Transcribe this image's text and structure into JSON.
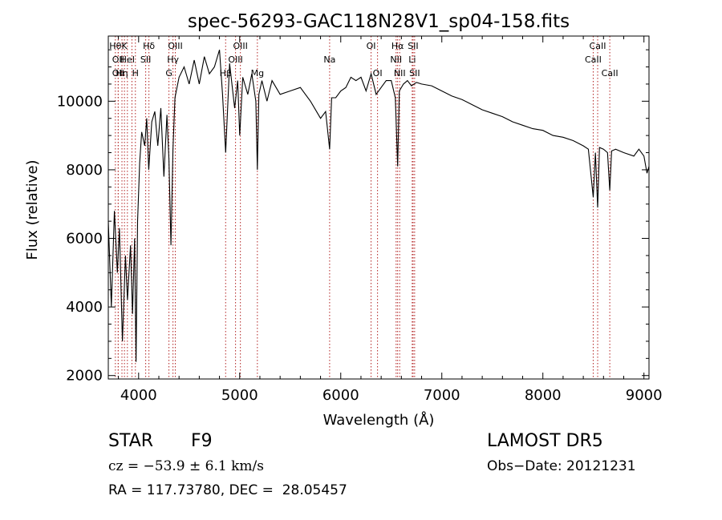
{
  "chart_data": {
    "type": "line",
    "title": "spec-56293-GAC118N28V1_sp04-158.fits",
    "xlabel": "Wavelength (Å)",
    "ylabel": "Flux (relative)",
    "xlim": [
      3700,
      9050
    ],
    "ylim": [
      1900,
      11900
    ],
    "xticks": [
      4000,
      5000,
      6000,
      7000,
      8000,
      9000
    ],
    "yticks": [
      2000,
      4000,
      6000,
      8000,
      10000
    ],
    "grid": false,
    "series": [
      {
        "x": [
          3700,
          3730,
          3760,
          3790,
          3810,
          3840,
          3870,
          3890,
          3920,
          3940,
          3960,
          3975,
          3990,
          4010,
          4030,
          4060,
          4080,
          4100,
          4130,
          4160,
          4190,
          4220,
          4250,
          4280,
          4300,
          4320,
          4340,
          4360,
          4400,
          4450,
          4500,
          4550,
          4600,
          4650,
          4700,
          4750,
          4800,
          4830,
          4861,
          4900,
          4950,
          4980,
          5000,
          5030,
          5080,
          5120,
          5160,
          5175,
          5190,
          5220,
          5270,
          5320,
          5400,
          5500,
          5600,
          5700,
          5800,
          5850,
          5890,
          5910,
          5950,
          6000,
          6050,
          6100,
          6150,
          6200,
          6250,
          6300,
          6350,
          6400,
          6450,
          6500,
          6540,
          6563,
          6580,
          6620,
          6660,
          6700,
          6750,
          6800,
          6900,
          7000,
          7100,
          7200,
          7300,
          7400,
          7500,
          7600,
          7700,
          7800,
          7900,
          8000,
          8100,
          8200,
          8300,
          8400,
          8450,
          8498,
          8520,
          8542,
          8560,
          8600,
          8640,
          8662,
          8680,
          8720,
          8800,
          8900,
          8950,
          9000,
          9030,
          9050
        ],
        "y": [
          6500,
          4000,
          6800,
          5000,
          6300,
          3000,
          5500,
          4200,
          5800,
          3800,
          6000,
          2400,
          6500,
          8200,
          9100,
          8700,
          9500,
          8000,
          9400,
          9700,
          8700,
          9800,
          7800,
          9600,
          8300,
          5800,
          8600,
          10100,
          10700,
          11000,
          10500,
          11200,
          10500,
          11300,
          10800,
          11000,
          11500,
          10200,
          8500,
          11100,
          9800,
          10600,
          9000,
          10700,
          10200,
          10800,
          10000,
          8000,
          10200,
          10600,
          10000,
          10600,
          10200,
          10300,
          10400,
          10000,
          9500,
          9700,
          8600,
          10100,
          10100,
          10300,
          10400,
          10700,
          10600,
          10700,
          10300,
          10800,
          10200,
          10400,
          10600,
          10600,
          10100,
          8100,
          10300,
          10500,
          10600,
          10450,
          10550,
          10500,
          10450,
          10300,
          10150,
          10050,
          9900,
          9750,
          9650,
          9550,
          9400,
          9300,
          9200,
          9150,
          9000,
          8950,
          8850,
          8700,
          8600,
          7200,
          8500,
          6900,
          8650,
          8600,
          8500,
          7400,
          8550,
          8600,
          8500,
          8400,
          8600,
          8400,
          7900,
          8100
        ]
      }
    ],
    "lines": [
      {
        "x": 3770,
        "label": "Hθ",
        "row": 0
      },
      {
        "x": 3798,
        "label": "OII",
        "row": 1
      },
      {
        "x": 3798,
        "label": "OII",
        "row": 2
      },
      {
        "x": 3835,
        "label": "Hη",
        "row": 2
      },
      {
        "x": 3860,
        "label": "K",
        "row": 0
      },
      {
        "x": 3889,
        "label": "HeI",
        "row": 1
      },
      {
        "x": 3934,
        "label": "",
        "row": 0
      },
      {
        "x": 3968,
        "label": "H",
        "row": 2
      },
      {
        "x": 4070,
        "label": "SII",
        "row": 1
      },
      {
        "x": 4102,
        "label": "Hδ",
        "row": 0
      },
      {
        "x": 4300,
        "label": "G",
        "row": 2
      },
      {
        "x": 4340,
        "label": "Hγ",
        "row": 1
      },
      {
        "x": 4363,
        "label": "OIII",
        "row": 0
      },
      {
        "x": 4861,
        "label": "Hβ",
        "row": 2
      },
      {
        "x": 4959,
        "label": "OIII",
        "row": 1
      },
      {
        "x": 5007,
        "label": "OIII",
        "row": 0
      },
      {
        "x": 5175,
        "label": "Mg",
        "row": 2
      },
      {
        "x": 5890,
        "label": "Na",
        "row": 1
      },
      {
        "x": 6300,
        "label": "OI",
        "row": 0
      },
      {
        "x": 6364,
        "label": "OI",
        "row": 2
      },
      {
        "x": 6548,
        "label": "NII",
        "row": 1
      },
      {
        "x": 6563,
        "label": "Hα",
        "row": 0
      },
      {
        "x": 6583,
        "label": "NII",
        "row": 2
      },
      {
        "x": 6707,
        "label": "Li",
        "row": 1
      },
      {
        "x": 6716,
        "label": "SII",
        "row": 0
      },
      {
        "x": 6731,
        "label": "SII",
        "row": 2
      },
      {
        "x": 8498,
        "label": "CaII",
        "row": 1
      },
      {
        "x": 8542,
        "label": "CaII",
        "row": 0
      },
      {
        "x": 8662,
        "label": "CaII",
        "row": 2
      }
    ]
  },
  "info": {
    "obj_class": "STAR",
    "subclass": "F9",
    "survey": "LAMOST DR5",
    "cz": "cz = −53.9 ± 6.1 km/s",
    "obs_date": "Obs−Date: 20121231",
    "coords": "RA = 117.73780, DEC =  28.05457"
  }
}
